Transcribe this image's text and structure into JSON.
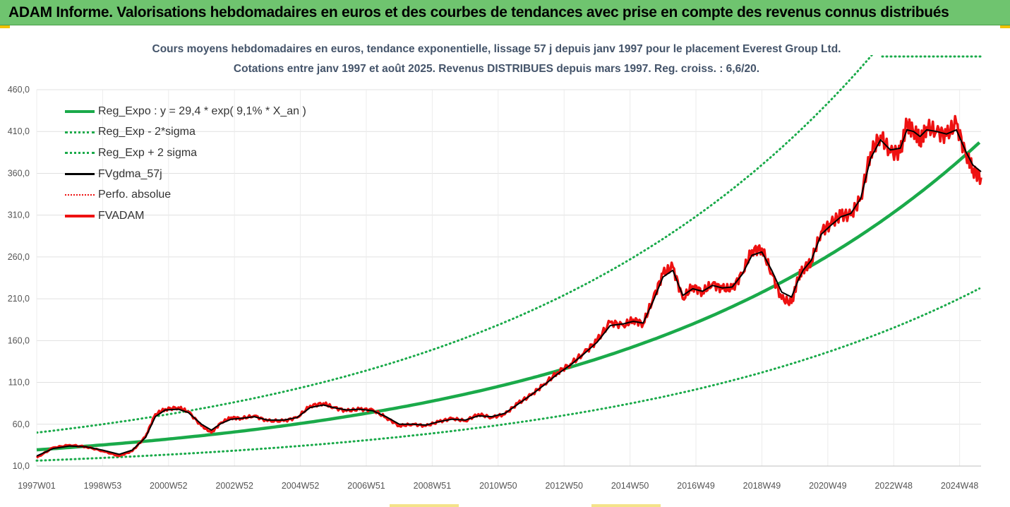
{
  "banner": {
    "title": "ADAM Informe. Valorisations hebdomadaires en euros et des courbes de tendances avec prise en compte des revenus connus distribués"
  },
  "colors": {
    "banner_bg": "#6fc46f",
    "trend": "#1aaa4a",
    "black": "#000000",
    "red": "#ee1111",
    "grid": "#e0e0e0",
    "title": "#44546a"
  },
  "chart_data": {
    "type": "line",
    "title_line1": "Cours moyens hebdomadaires en euros, tendance exponentielle, lissage 57 j depuis janv 1997 pour le placement Everest Group Ltd.",
    "title_line2": "Cotations entre janv 1997 et août 2025.  Revenus DISTRIBUES depuis mars 1997. Reg. croiss. : 6,6/20.",
    "ylim": [
      10,
      460
    ],
    "xlim": [
      1997.0,
      2025.65
    ],
    "y_ticks": [
      "10,0",
      "60,0",
      "110,0",
      "160,0",
      "210,0",
      "260,0",
      "310,0",
      "360,0",
      "410,0",
      "460,0"
    ],
    "y_tick_values": [
      10,
      60,
      110,
      160,
      210,
      260,
      310,
      360,
      410,
      460
    ],
    "x_ticks": [
      "1997W01",
      "1998W53",
      "2000W52",
      "2002W52",
      "2004W52",
      "2006W51",
      "2008W51",
      "2010W50",
      "2012W50",
      "2014W50",
      "2016W49",
      "2018W49",
      "2020W49",
      "2022W48",
      "2024W48"
    ],
    "x_tick_values": [
      1997.0,
      1999.0,
      2001.0,
      2003.0,
      2005.0,
      2007.0,
      2009.0,
      2011.0,
      2013.0,
      2015.0,
      2017.0,
      2019.0,
      2021.0,
      2023.0,
      2025.0
    ],
    "legend": [
      {
        "label": "Reg_Expo : y = 29,4 * exp( 9,1% *  X_an )",
        "color": "#1aaa4a",
        "style": "solid",
        "width": 4
      },
      {
        "label": "Reg_Exp - 2*sigma",
        "color": "#1aaa4a",
        "style": "dotted",
        "width": 3
      },
      {
        "label": "Reg_Exp + 2 sigma",
        "color": "#1aaa4a",
        "style": "dotted",
        "width": 3
      },
      {
        "label": "FVgdma_57j",
        "color": "#000000",
        "style": "solid",
        "width": 3
      },
      {
        "label": "Perfo. absolue",
        "color": "#ee1111",
        "style": "dotted",
        "width": 2
      },
      {
        "label": "FVADAM",
        "color": "#ee1111",
        "style": "solid",
        "width": 4
      }
    ],
    "trend": {
      "a": 29.4,
      "rate": 0.091,
      "lower_factor": 0.56,
      "upper_factor": 1.7
    },
    "series": [
      {
        "name": "FVADAM",
        "x": [
          1997.0,
          1997.5,
          1998.0,
          1998.5,
          1999.0,
          1999.5,
          1999.9,
          2000.3,
          2000.6,
          2000.9,
          2001.3,
          2001.6,
          2002.0,
          2002.3,
          2002.6,
          2002.9,
          2003.2,
          2003.6,
          2004.0,
          2004.5,
          2004.9,
          2005.3,
          2005.7,
          2006.0,
          2006.4,
          2006.8,
          2007.2,
          2007.6,
          2008.0,
          2008.4,
          2008.8,
          2009.2,
          2009.6,
          2010.0,
          2010.4,
          2010.8,
          2011.2,
          2011.6,
          2012.0,
          2012.4,
          2012.8,
          2013.2,
          2013.6,
          2014.0,
          2014.4,
          2014.8,
          2015.1,
          2015.4,
          2015.7,
          2016.0,
          2016.3,
          2016.6,
          2016.9,
          2017.2,
          2017.5,
          2017.8,
          2018.1,
          2018.4,
          2018.7,
          2019.0,
          2019.3,
          2019.6,
          2019.9,
          2020.1,
          2020.25,
          2020.5,
          2020.8,
          2021.1,
          2021.4,
          2021.7,
          2022.0,
          2022.3,
          2022.6,
          2022.9,
          2023.2,
          2023.4,
          2023.6,
          2023.8,
          2024.0,
          2024.3,
          2024.6,
          2024.9,
          2025.2,
          2025.4,
          2025.65
        ],
        "y": [
          20,
          32,
          35,
          33,
          28,
          22,
          28,
          45,
          72,
          78,
          80,
          75,
          58,
          50,
          62,
          68,
          67,
          70,
          64,
          64,
          68,
          82,
          85,
          80,
          76,
          78,
          77,
          68,
          58,
          60,
          58,
          63,
          67,
          64,
          72,
          68,
          72,
          85,
          95,
          108,
          122,
          132,
          145,
          160,
          182,
          178,
          185,
          180,
          210,
          240,
          248,
          210,
          225,
          218,
          228,
          222,
          222,
          240,
          268,
          270,
          240,
          210,
          205,
          235,
          245,
          255,
          290,
          300,
          310,
          310,
          330,
          385,
          405,
          385,
          385,
          420,
          410,
          400,
          415,
          410,
          405,
          420,
          380,
          365,
          355
        ]
      },
      {
        "name": "FVgdma_57j",
        "x": [
          1997.0,
          1997.5,
          1998.0,
          1998.5,
          1999.0,
          1999.5,
          1999.9,
          2000.3,
          2000.6,
          2000.9,
          2001.3,
          2001.6,
          2002.0,
          2002.3,
          2002.6,
          2002.9,
          2003.2,
          2003.6,
          2004.0,
          2004.5,
          2004.9,
          2005.3,
          2005.7,
          2006.0,
          2006.4,
          2006.8,
          2007.2,
          2007.6,
          2008.0,
          2008.4,
          2008.8,
          2009.2,
          2009.6,
          2010.0,
          2010.4,
          2010.8,
          2011.2,
          2011.6,
          2012.0,
          2012.4,
          2012.8,
          2013.2,
          2013.6,
          2014.0,
          2014.4,
          2014.8,
          2015.1,
          2015.4,
          2015.7,
          2016.0,
          2016.3,
          2016.6,
          2016.9,
          2017.2,
          2017.5,
          2017.8,
          2018.1,
          2018.4,
          2018.7,
          2019.0,
          2019.3,
          2019.6,
          2019.9,
          2020.1,
          2020.25,
          2020.5,
          2020.8,
          2021.1,
          2021.4,
          2021.7,
          2022.0,
          2022.3,
          2022.6,
          2022.9,
          2023.2,
          2023.4,
          2023.6,
          2023.8,
          2024.0,
          2024.3,
          2024.6,
          2024.9,
          2025.2,
          2025.4,
          2025.65
        ],
        "y": [
          22,
          31,
          34,
          33,
          29,
          24,
          29,
          44,
          69,
          77,
          78,
          74,
          60,
          53,
          61,
          66,
          67,
          69,
          65,
          65,
          68,
          80,
          83,
          80,
          77,
          78,
          76,
          69,
          60,
          60,
          59,
          63,
          66,
          65,
          70,
          69,
          73,
          84,
          95,
          107,
          120,
          131,
          144,
          158,
          178,
          180,
          183,
          181,
          207,
          236,
          244,
          214,
          222,
          219,
          226,
          223,
          224,
          239,
          262,
          266,
          244,
          218,
          212,
          232,
          244,
          256,
          287,
          298,
          308,
          312,
          330,
          378,
          400,
          388,
          390,
          412,
          410,
          404,
          412,
          410,
          407,
          412,
          385,
          370,
          362
        ]
      }
    ]
  }
}
